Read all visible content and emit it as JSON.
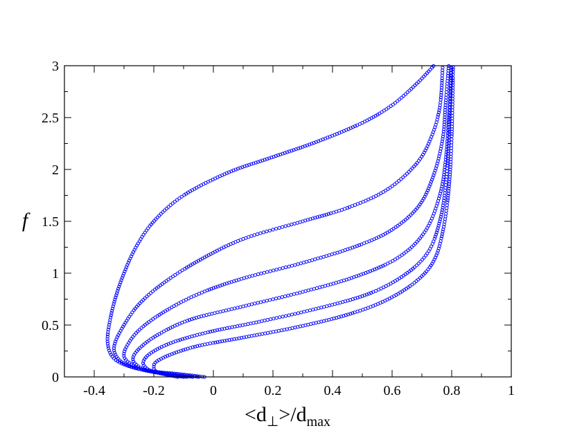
{
  "chart_data": {
    "type": "scatter",
    "title": "",
    "xlabel": "<d⊥>/dmax",
    "xlabel_parts": {
      "open": "<d",
      "sub1": "⊥",
      "mid": ">/d",
      "sub2": "max"
    },
    "ylabel": "f",
    "xlim": [
      -0.5,
      1.0
    ],
    "ylim": [
      0,
      3
    ],
    "x_ticks": [
      -0.4,
      -0.2,
      0,
      0.2,
      0.4,
      0.6,
      0.8,
      1
    ],
    "x_tick_labels": [
      "-0.4",
      "-0.2",
      "0",
      "0.2",
      "0.4",
      "0.6",
      "0.8",
      "1"
    ],
    "y_ticks": [
      0,
      0.5,
      1,
      1.5,
      2,
      2.5,
      3
    ],
    "y_tick_labels": [
      "0",
      "0.5",
      "1",
      "1.5",
      "2",
      "2.5",
      "3"
    ],
    "marker": "open-circle",
    "marker_color": "#0000ff",
    "grid": false,
    "legend": "none",
    "series": [
      {
        "values": [
          [
            -0.03,
            0.0
          ],
          [
            -0.12,
            0.03
          ],
          [
            -0.22,
            0.06
          ],
          [
            -0.3,
            0.12
          ],
          [
            -0.34,
            0.2
          ],
          [
            -0.355,
            0.33
          ],
          [
            -0.35,
            0.5
          ],
          [
            -0.33,
            0.75
          ],
          [
            -0.3,
            1.0
          ],
          [
            -0.26,
            1.25
          ],
          [
            -0.2,
            1.5
          ],
          [
            -0.1,
            1.75
          ],
          [
            0.05,
            1.97
          ],
          [
            0.2,
            2.12
          ],
          [
            0.35,
            2.27
          ],
          [
            0.5,
            2.45
          ],
          [
            0.6,
            2.62
          ],
          [
            0.68,
            2.82
          ],
          [
            0.74,
            3.0
          ]
        ]
      },
      {
        "values": [
          [
            -0.05,
            0.0
          ],
          [
            -0.14,
            0.03
          ],
          [
            -0.24,
            0.07
          ],
          [
            -0.3,
            0.13
          ],
          [
            -0.33,
            0.22
          ],
          [
            -0.33,
            0.33
          ],
          [
            -0.3,
            0.5
          ],
          [
            -0.25,
            0.7
          ],
          [
            -0.17,
            0.9
          ],
          [
            -0.05,
            1.12
          ],
          [
            0.1,
            1.33
          ],
          [
            0.3,
            1.5
          ],
          [
            0.45,
            1.63
          ],
          [
            0.58,
            1.8
          ],
          [
            0.68,
            2.05
          ],
          [
            0.73,
            2.3
          ],
          [
            0.76,
            2.6
          ],
          [
            0.77,
            3.0
          ]
        ]
      },
      {
        "values": [
          [
            -0.07,
            0.0
          ],
          [
            -0.16,
            0.03
          ],
          [
            -0.24,
            0.07
          ],
          [
            -0.28,
            0.13
          ],
          [
            -0.3,
            0.2
          ],
          [
            -0.29,
            0.3
          ],
          [
            -0.25,
            0.45
          ],
          [
            -0.17,
            0.62
          ],
          [
            -0.05,
            0.8
          ],
          [
            0.1,
            0.95
          ],
          [
            0.3,
            1.1
          ],
          [
            0.48,
            1.26
          ],
          [
            0.6,
            1.42
          ],
          [
            0.69,
            1.65
          ],
          [
            0.74,
            1.95
          ],
          [
            0.77,
            2.3
          ],
          [
            0.78,
            2.65
          ],
          [
            0.79,
            3.0
          ]
        ]
      },
      {
        "values": [
          [
            -0.09,
            0.0
          ],
          [
            -0.17,
            0.03
          ],
          [
            -0.23,
            0.07
          ],
          [
            -0.26,
            0.12
          ],
          [
            -0.27,
            0.18
          ],
          [
            -0.25,
            0.27
          ],
          [
            -0.19,
            0.4
          ],
          [
            -0.08,
            0.55
          ],
          [
            0.1,
            0.68
          ],
          [
            0.3,
            0.82
          ],
          [
            0.48,
            0.97
          ],
          [
            0.62,
            1.15
          ],
          [
            0.71,
            1.4
          ],
          [
            0.76,
            1.75
          ],
          [
            0.78,
            2.1
          ],
          [
            0.79,
            2.5
          ],
          [
            0.8,
            3.0
          ]
        ]
      },
      {
        "values": [
          [
            -0.1,
            0.0
          ],
          [
            -0.17,
            0.03
          ],
          [
            -0.21,
            0.06
          ],
          [
            -0.23,
            0.1
          ],
          [
            -0.235,
            0.15
          ],
          [
            -0.21,
            0.23
          ],
          [
            -0.14,
            0.33
          ],
          [
            -0.02,
            0.43
          ],
          [
            0.15,
            0.53
          ],
          [
            0.35,
            0.66
          ],
          [
            0.52,
            0.8
          ],
          [
            0.64,
            0.98
          ],
          [
            0.72,
            1.2
          ],
          [
            0.76,
            1.5
          ],
          [
            0.78,
            1.85
          ],
          [
            0.79,
            2.3
          ],
          [
            0.8,
            3.0
          ]
        ]
      },
      {
        "values": [
          [
            -0.12,
            0.0
          ],
          [
            -0.17,
            0.03
          ],
          [
            -0.195,
            0.06
          ],
          [
            -0.2,
            0.1
          ],
          [
            -0.19,
            0.15
          ],
          [
            -0.14,
            0.22
          ],
          [
            -0.05,
            0.3
          ],
          [
            0.1,
            0.38
          ],
          [
            0.28,
            0.48
          ],
          [
            0.45,
            0.6
          ],
          [
            0.58,
            0.74
          ],
          [
            0.68,
            0.92
          ],
          [
            0.74,
            1.12
          ],
          [
            0.77,
            1.4
          ],
          [
            0.79,
            1.8
          ],
          [
            0.8,
            2.3
          ],
          [
            0.805,
            3.0
          ]
        ]
      }
    ]
  }
}
